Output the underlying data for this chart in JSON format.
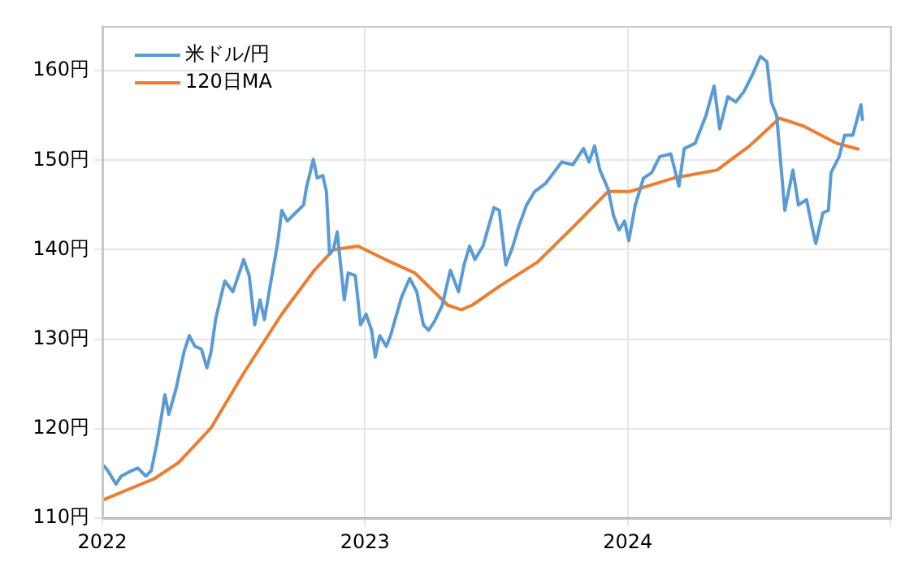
{
  "chart_data": {
    "type": "line",
    "xlim": [
      2022,
      2025
    ],
    "xticks": [
      2022,
      2023,
      2024,
      {
        "value": 2025,
        "label": null
      }
    ],
    "ylim": [
      110,
      165
    ],
    "yticks": [
      {
        "value": 110,
        "label": "110円"
      },
      {
        "value": 120,
        "label": "120円"
      },
      {
        "value": 130,
        "label": "130円"
      },
      {
        "value": 140,
        "label": "140円"
      },
      {
        "value": 150,
        "label": "150円"
      },
      {
        "value": 160,
        "label": "160円"
      }
    ],
    "grid": true,
    "legend": "top left",
    "marker": "none",
    "line_style": "solid",
    "series": [
      {
        "name": "米ドル/円",
        "color": "#5b9bd5",
        "x": [
          2022.004,
          2022.021,
          2022.052,
          2022.072,
          2022.104,
          2022.135,
          2022.166,
          2022.186,
          2022.207,
          2022.228,
          2022.238,
          2022.253,
          2022.28,
          2022.311,
          2022.331,
          2022.352,
          2022.377,
          2022.398,
          2022.414,
          2022.431,
          2022.451,
          2022.466,
          2022.497,
          2022.538,
          2022.559,
          2022.58,
          2022.6,
          2022.617,
          2022.642,
          2022.667,
          2022.683,
          2022.704,
          2022.735,
          2022.766,
          2022.776,
          2022.803,
          2022.818,
          2022.839,
          2022.853,
          2022.865,
          2022.88,
          2022.894,
          2022.907,
          2022.921,
          2022.936,
          2022.963,
          2022.983,
          2023.004,
          2023.025,
          2023.039,
          2023.056,
          2023.081,
          2023.097,
          2023.139,
          2023.17,
          2023.197,
          2023.222,
          2023.242,
          2023.263,
          2023.294,
          2023.325,
          2023.356,
          2023.377,
          2023.398,
          2023.418,
          2023.449,
          2023.491,
          2023.511,
          2023.536,
          2023.563,
          2023.584,
          2023.615,
          2023.646,
          2023.687,
          2023.718,
          2023.749,
          2023.791,
          2023.832,
          2023.853,
          2023.874,
          2023.894,
          2023.925,
          2023.946,
          2023.967,
          2023.988,
          2024.004,
          2024.029,
          2024.06,
          2024.091,
          2024.122,
          2024.164,
          2024.195,
          2024.215,
          2024.257,
          2024.298,
          2024.329,
          2024.35,
          2024.381,
          2024.412,
          2024.443,
          2024.474,
          2024.505,
          2024.53,
          2024.547,
          2024.567,
          2024.598,
          2024.629,
          2024.65,
          2024.681,
          2024.702,
          2024.716,
          2024.743,
          2024.764,
          2024.774,
          2024.805,
          2024.826,
          2024.857,
          2024.888,
          2024.894
        ],
        "values": [
          115.9,
          115.3,
          113.8,
          114.7,
          115.2,
          115.6,
          114.7,
          115.3,
          118.3,
          121.9,
          123.8,
          121.6,
          124.4,
          128.6,
          130.4,
          129.2,
          128.9,
          126.8,
          128.6,
          132.2,
          134.7,
          136.5,
          135.3,
          138.9,
          137.1,
          131.6,
          134.4,
          132.2,
          136.5,
          140.7,
          144.4,
          143.2,
          144.1,
          145,
          146.8,
          150.1,
          148,
          148.3,
          146.5,
          139.5,
          140.1,
          142,
          138.3,
          134.4,
          137.4,
          137.1,
          131.6,
          132.8,
          131,
          128,
          130.4,
          129.2,
          130.4,
          134.7,
          136.8,
          135.3,
          131.6,
          131,
          131.9,
          133.8,
          137.7,
          135.3,
          138.3,
          140.4,
          138.9,
          140.4,
          144.7,
          144.4,
          138.3,
          140.4,
          142.5,
          145,
          146.5,
          147.4,
          148.6,
          149.8,
          149.5,
          151.3,
          149.8,
          151.6,
          148.9,
          146.8,
          143.8,
          142.2,
          143.2,
          141,
          145,
          148,
          148.6,
          150.4,
          150.7,
          147.1,
          151.3,
          151.9,
          155,
          158.3,
          153.5,
          157.1,
          156.5,
          157.7,
          159.5,
          161.6,
          161,
          156.5,
          155,
          144.4,
          148.9,
          145,
          145.6,
          142.5,
          140.7,
          144.1,
          144.4,
          148.6,
          150.4,
          152.8,
          152.8,
          156.2,
          154.4
        ]
      },
      {
        "name": "120日MA",
        "color": "#ed7d31",
        "x": [
          2022,
          2022.197,
          2022.29,
          2022.414,
          2022.538,
          2022.683,
          2022.807,
          2022.88,
          2022.973,
          2023.077,
          2023.19,
          2023.263,
          2023.315,
          2023.366,
          2023.408,
          2023.511,
          2023.656,
          2023.791,
          2023.925,
          2024.008,
          2024.174,
          2024.34,
          2024.464,
          2024.578,
          2024.671,
          2024.795,
          2024.882
        ],
        "values": [
          112,
          114.4,
          116.2,
          120.1,
          126.2,
          132.8,
          137.7,
          140,
          140.4,
          138.9,
          137.4,
          135.3,
          133.8,
          133.3,
          133.8,
          135.9,
          138.6,
          142.5,
          146.5,
          146.5,
          148,
          148.9,
          151.6,
          154.7,
          153.8,
          151.9,
          151.2
        ]
      }
    ]
  }
}
